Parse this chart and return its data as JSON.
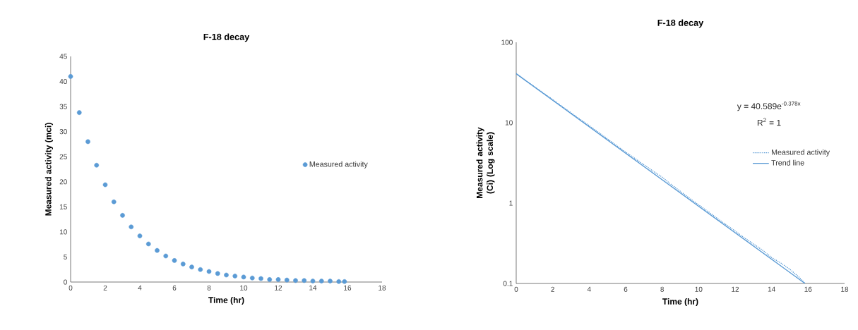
{
  "chart_data": [
    {
      "type": "scatter",
      "title": "F-18 decay",
      "xlabel": "Time (hr)",
      "ylabel": "Measured activity (mci)",
      "x": [
        0,
        0.5,
        1,
        1.5,
        2,
        2.5,
        3,
        3.5,
        4,
        4.5,
        5,
        5.5,
        6,
        6.5,
        7,
        7.5,
        8,
        8.5,
        9,
        9.5,
        10,
        10.5,
        11,
        11.5,
        12,
        12.5,
        13,
        13.5,
        14,
        14.5,
        15,
        15.5,
        15.83
      ],
      "series": [
        {
          "name": "Measured activity",
          "color": "#5b9bd5",
          "values": [
            41,
            33.8,
            28,
            23.3,
            19.4,
            16,
            13.3,
            11,
            9.2,
            7.6,
            6.3,
            5.2,
            4.3,
            3.6,
            3.0,
            2.5,
            2.1,
            1.7,
            1.4,
            1.2,
            1.0,
            0.8,
            0.7,
            0.5,
            0.5,
            0.4,
            0.3,
            0.3,
            0.2,
            0.2,
            0.2,
            0.1,
            0.1
          ]
        }
      ],
      "xlim": [
        0,
        18
      ],
      "xticks": [
        0,
        2,
        4,
        6,
        8,
        10,
        12,
        14,
        16,
        18
      ],
      "ylim": [
        0,
        45
      ],
      "yticks": [
        0,
        5,
        10,
        15,
        20,
        25,
        30,
        35,
        40,
        45
      ],
      "grid": false,
      "legend": "right",
      "marker": "circle"
    },
    {
      "type": "line",
      "title": "F-18 decay",
      "xlabel": "Time (hr)",
      "ylabel": "Measured activity (Ci) (Log scale)",
      "log": "y",
      "x": [
        0,
        0.5,
        1,
        1.5,
        2,
        2.5,
        3,
        3.5,
        4,
        4.5,
        5,
        5.5,
        6,
        6.5,
        7,
        7.5,
        8,
        8.5,
        9,
        9.5,
        10,
        10.5,
        11,
        11.5,
        12,
        12.5,
        13,
        13.5,
        14,
        14.5,
        15,
        15.5,
        15.83
      ],
      "series": [
        {
          "name": "Measured activity",
          "color": "#5b9bd5",
          "line_style": "dotted",
          "values": [
            41,
            33.8,
            28,
            23.3,
            19.4,
            16,
            13.3,
            11,
            9.2,
            7.6,
            6.3,
            5.2,
            4.3,
            3.6,
            3.0,
            2.5,
            2.1,
            1.7,
            1.4,
            1.15,
            0.95,
            0.79,
            0.65,
            0.54,
            0.45,
            0.37,
            0.31,
            0.26,
            0.21,
            0.18,
            0.15,
            0.12,
            0.1
          ]
        },
        {
          "name": "Trend line",
          "color": "#5b9bd5",
          "line_style": "solid",
          "x": [
            0,
            15.83
          ],
          "values": [
            40.589,
            0.1
          ]
        }
      ],
      "annotations": [
        "y = 40.589e$^{-0.378x}$",
        "R$^{2}$ = 1"
      ],
      "xlim": [
        0,
        18
      ],
      "xticks": [
        0,
        2,
        4,
        6,
        8,
        10,
        12,
        14,
        16,
        18
      ],
      "ylim": [
        0.1,
        100
      ],
      "yticks": [
        0.1,
        1,
        10,
        100
      ],
      "grid": false,
      "legend": "right"
    }
  ]
}
